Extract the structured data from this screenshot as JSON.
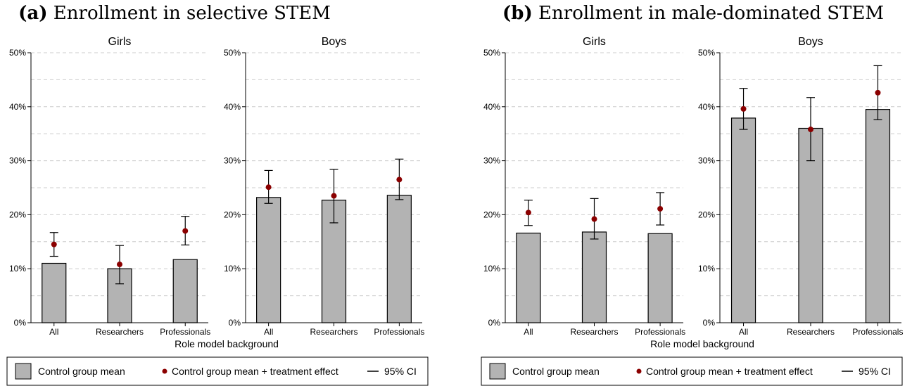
{
  "legend": {
    "control_label": "Control group mean",
    "treatment_label": "Control group mean + treatment effect",
    "ci_label": "95% CI"
  },
  "colors": {
    "bar_fill": "#b3b3b3",
    "bar_stroke": "#000000",
    "point": "#8b0000",
    "grid": "#cccccc"
  },
  "chart_data": [
    {
      "type": "bar",
      "title_label": "(a)",
      "title": "Enrollment in selective STEM",
      "xlabel": "Role model background",
      "ylim": [
        0,
        50
      ],
      "yticks": [
        "0%",
        "10%",
        "20%",
        "30%",
        "40%",
        "50%"
      ],
      "categories": [
        "All",
        "Researchers",
        "Professionals"
      ],
      "panels": [
        {
          "name": "Girls",
          "control_mean": [
            11.0,
            10.0,
            11.7
          ],
          "treatment_point": [
            14.5,
            10.8,
            17.0
          ],
          "ci_low": [
            12.3,
            7.2,
            14.4
          ],
          "ci_high": [
            16.7,
            14.3,
            19.7
          ]
        },
        {
          "name": "Boys",
          "control_mean": [
            23.2,
            22.7,
            23.6
          ],
          "treatment_point": [
            25.1,
            23.5,
            26.5
          ],
          "ci_low": [
            22.1,
            18.5,
            22.8
          ],
          "ci_high": [
            28.2,
            28.4,
            30.3
          ]
        }
      ]
    },
    {
      "type": "bar",
      "title_label": "(b)",
      "title": "Enrollment in male-dominated STEM",
      "xlabel": "Role model background",
      "ylim": [
        0,
        50
      ],
      "yticks": [
        "0%",
        "10%",
        "20%",
        "30%",
        "40%",
        "50%"
      ],
      "categories": [
        "All",
        "Researchers",
        "Professionals"
      ],
      "panels": [
        {
          "name": "Girls",
          "control_mean": [
            16.6,
            16.8,
            16.5
          ],
          "treatment_point": [
            20.4,
            19.2,
            21.1
          ],
          "ci_low": [
            18.0,
            15.5,
            18.1
          ],
          "ci_high": [
            22.7,
            23.0,
            24.1
          ]
        },
        {
          "name": "Boys",
          "control_mean": [
            37.9,
            36.0,
            39.5
          ],
          "treatment_point": [
            39.6,
            35.8,
            42.6
          ],
          "ci_low": [
            35.8,
            30.0,
            37.6
          ],
          "ci_high": [
            43.4,
            41.7,
            47.6
          ]
        }
      ]
    }
  ]
}
